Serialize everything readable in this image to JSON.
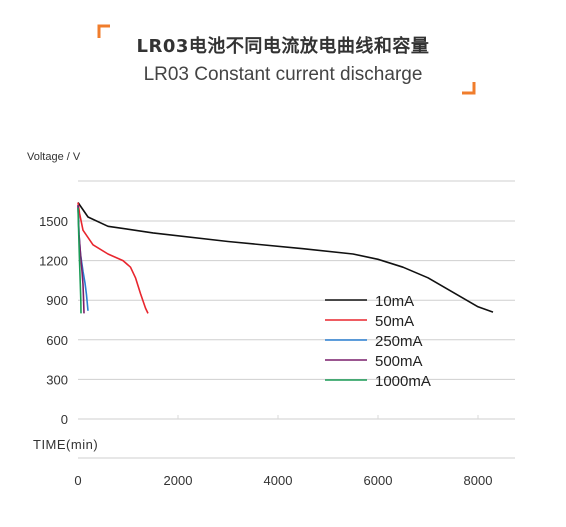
{
  "header": {
    "title_cn": "LR03电池不同电流放电曲线和容量",
    "title_en": "LR03 Constant current discharge",
    "accent_color": "#f07d2c"
  },
  "chart_data": {
    "type": "line",
    "ylabel": "Voltage / V",
    "xlabel": "TIME(min)",
    "xlim": [
      0,
      8800
    ],
    "ylim": [
      0,
      1650
    ],
    "x_ticks": [
      0,
      2000,
      4000,
      6000,
      8000
    ],
    "y_ticks": [
      0,
      300,
      600,
      900,
      1200,
      1500
    ],
    "x_tick_labels": [
      "0",
      "2000",
      "4000",
      "6000",
      "8000"
    ],
    "y_tick_labels": [
      "0",
      "300",
      "600",
      "900",
      "1200",
      "1500"
    ],
    "grid": "horizontal",
    "legend_position": "bottom-right",
    "series": [
      {
        "name": "10mA",
        "color": "#111111",
        "x": [
          0,
          200,
          600,
          1500,
          3000,
          4500,
          5500,
          6000,
          6500,
          7000,
          7500,
          8000,
          8300
        ],
        "y": [
          1640,
          1530,
          1460,
          1410,
          1345,
          1290,
          1250,
          1210,
          1150,
          1070,
          960,
          850,
          810
        ]
      },
      {
        "name": "50mA",
        "color": "#e8262e",
        "x": [
          0,
          30,
          100,
          300,
          600,
          900,
          1050,
          1150,
          1250,
          1350,
          1400
        ],
        "y": [
          1640,
          1560,
          1430,
          1320,
          1250,
          1200,
          1150,
          1070,
          950,
          840,
          800
        ]
      },
      {
        "name": "250mA",
        "color": "#2a7fd0",
        "x": [
          0,
          20,
          50,
          100,
          140,
          170,
          200
        ],
        "y": [
          1620,
          1400,
          1250,
          1120,
          1030,
          940,
          820
        ]
      },
      {
        "name": "500mA",
        "color": "#7a1f6b",
        "x": [
          0,
          20,
          50,
          80,
          100,
          110,
          120
        ],
        "y": [
          1620,
          1400,
          1250,
          1120,
          1020,
          920,
          800
        ]
      },
      {
        "name": "1000mA",
        "color": "#1a9c57",
        "x": [
          0,
          15,
          30,
          45,
          55,
          60
        ],
        "y": [
          1600,
          1380,
          1200,
          1020,
          900,
          800
        ]
      }
    ]
  }
}
